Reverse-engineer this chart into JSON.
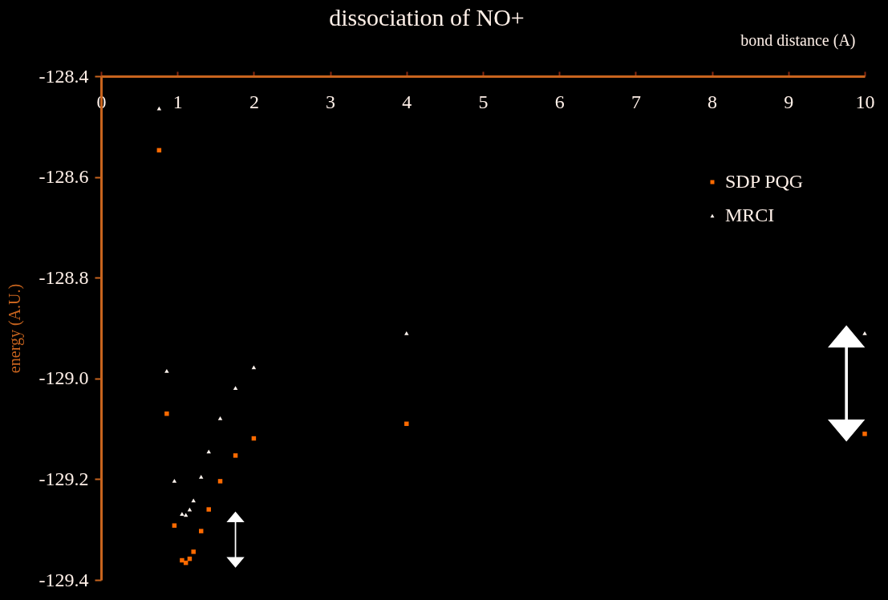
{
  "chart_data": {
    "type": "scatter",
    "title": "dissociation of NO+",
    "xlabel": "bond distance (A)",
    "ylabel": "energy (A.U.)",
    "xlim": [
      0,
      10
    ],
    "xticks": [
      0,
      1,
      2,
      3,
      4,
      5,
      6,
      7,
      8,
      9,
      10
    ],
    "ylim": [
      -129.4,
      -128.4
    ],
    "yticks": [
      {
        "value": -129.4,
        "label": "-129.4"
      },
      {
        "value": -129.2,
        "label": "-129.2"
      },
      {
        "value": -129.0,
        "label": "-129.0"
      },
      {
        "value": -128.8,
        "label": "-128.8"
      },
      {
        "value": -128.6,
        "label": "-128.6"
      },
      {
        "value": -128.4,
        "label": "-128.4"
      }
    ],
    "grid": false,
    "legend": "top right",
    "series": [
      {
        "name": "SDP PQG",
        "color": "#ff6a00",
        "marker": "square",
        "x": [
          0.76,
          0.86,
          0.96,
          1.06,
          1.11,
          1.16,
          1.21,
          1.31,
          1.41,
          1.56,
          1.76,
          2.0,
          4.0,
          10.0
        ],
        "values": [
          -128.547,
          -129.07,
          -129.292,
          -129.361,
          -129.366,
          -129.358,
          -129.344,
          -129.303,
          -129.26,
          -129.204,
          -129.153,
          -129.119,
          -129.09,
          -129.11
        ]
      },
      {
        "name": "MRCI",
        "color": "#fff4ee",
        "marker": "triangle",
        "x": [
          0.76,
          0.86,
          0.96,
          1.06,
          1.11,
          1.16,
          1.21,
          1.31,
          1.41,
          1.56,
          1.76,
          2.0,
          4.0,
          10.0
        ],
        "values": [
          -128.464,
          -128.985,
          -129.203,
          -129.269,
          -129.271,
          -129.26,
          -129.242,
          -129.195,
          -129.145,
          -129.079,
          -129.019,
          -128.978,
          -128.91,
          -128.91
        ]
      }
    ]
  }
}
